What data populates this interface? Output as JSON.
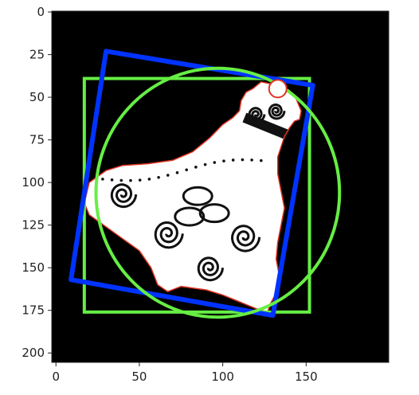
{
  "chart_data": {
    "type": "image",
    "title": "",
    "xlabel": "",
    "ylabel": "",
    "xlim": [
      -2.5,
      199.5
    ],
    "ylim": [
      205.5,
      -0.5
    ],
    "x_ticks": [
      0,
      50,
      100,
      150
    ],
    "y_ticks": [
      0,
      25,
      50,
      75,
      100,
      125,
      150,
      175,
      200
    ],
    "x_tick_labels": [
      "0",
      "50",
      "100",
      "150"
    ],
    "y_tick_labels": [
      "0",
      "25",
      "50",
      "75",
      "100",
      "125",
      "150",
      "175",
      "200"
    ],
    "background": "#000000",
    "image_content": "white Thor's hammer (Mjolnir) pendant with black Celtic knot engravings, red contour outline",
    "overlays": [
      {
        "name": "upright-bounding-box",
        "shape": "rectangle",
        "color": "#66ee44",
        "x0": 17,
        "y0": 39,
        "x1": 152,
        "y1": 176
      },
      {
        "name": "rotated-bounding-box",
        "shape": "polygon",
        "color": "#0033ff",
        "points": [
          [
            30,
            23
          ],
          [
            154,
            43
          ],
          [
            130,
            178
          ],
          [
            9,
            157
          ]
        ]
      },
      {
        "name": "min-enclosing-circle",
        "shape": "circle",
        "color": "#66ee44",
        "cx": 97,
        "cy": 106,
        "r": 73
      }
    ],
    "contour": {
      "color": "#dd3322",
      "points": [
        [
          123,
          41
        ],
        [
          133,
          43
        ],
        [
          140,
          46
        ],
        [
          144,
          51
        ],
        [
          147,
          58
        ],
        [
          146,
          63
        ],
        [
          143,
          64
        ],
        [
          140,
          68
        ],
        [
          137,
          73
        ],
        [
          135,
          79
        ],
        [
          133,
          85
        ],
        [
          133,
          95
        ],
        [
          135,
          105
        ],
        [
          137,
          115
        ],
        [
          135,
          125
        ],
        [
          133,
          135
        ],
        [
          132,
          145
        ],
        [
          134,
          155
        ],
        [
          132,
          165
        ],
        [
          128,
          172
        ],
        [
          127,
          176
        ],
        [
          120,
          174
        ],
        [
          110,
          170
        ],
        [
          100,
          166
        ],
        [
          90,
          163
        ],
        [
          75,
          161
        ],
        [
          67,
          164
        ],
        [
          61,
          160
        ],
        [
          57,
          150
        ],
        [
          50,
          140
        ],
        [
          40,
          133
        ],
        [
          30,
          126
        ],
        [
          20,
          119
        ],
        [
          17,
          112
        ],
        [
          20,
          100
        ],
        [
          30,
          93
        ],
        [
          40,
          90
        ],
        [
          55,
          89
        ],
        [
          70,
          87
        ],
        [
          82,
          82
        ],
        [
          92,
          74
        ],
        [
          100,
          66
        ],
        [
          106,
          62
        ],
        [
          110,
          58
        ],
        [
          111,
          52
        ],
        [
          114,
          47
        ],
        [
          118,
          45
        ]
      ]
    },
    "marker": {
      "color": "#ffffff",
      "outline": "#dd3322",
      "x": 133,
      "y": 45
    }
  }
}
